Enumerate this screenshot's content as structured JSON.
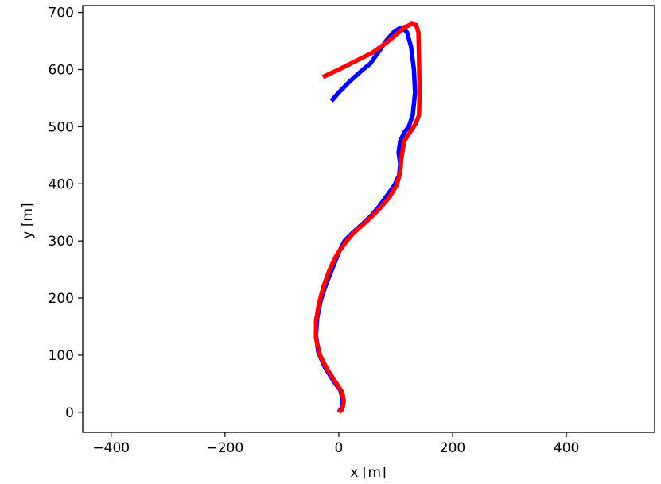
{
  "chart_data": {
    "type": "line",
    "title": "",
    "xlabel": "x [m]",
    "ylabel": "y [m]",
    "xlim": [
      -450,
      555
    ],
    "ylim": [
      -35,
      712
    ],
    "xticks": [
      -400,
      -200,
      0,
      200,
      400
    ],
    "yticks": [
      0,
      100,
      200,
      300,
      400,
      500,
      600,
      700
    ],
    "xtick_labels": [
      "−400",
      "−200",
      "0",
      "200",
      "400"
    ],
    "ytick_labels": [
      "0",
      "100",
      "200",
      "300",
      "400",
      "500",
      "600",
      "700"
    ],
    "grid": false,
    "legend": "none",
    "series": [
      {
        "color": "#0000ff",
        "x": [
          0,
          5,
          7,
          3,
          -10,
          -25,
          -36,
          -40,
          -38,
          -32,
          -22,
          -10,
          0,
          10,
          25,
          42,
          58,
          72,
          85,
          98,
          106,
          108,
          105,
          108,
          115,
          123,
          130,
          134,
          132,
          127,
          120,
          113,
          106,
          96,
          83,
          68,
          55,
          40,
          20,
          0,
          -13
        ],
        "y": [
          0,
          8,
          22,
          38,
          56,
          80,
          105,
          135,
          165,
          195,
          225,
          255,
          280,
          300,
          315,
          330,
          345,
          362,
          380,
          398,
          415,
          435,
          455,
          475,
          490,
          500,
          520,
          560,
          600,
          640,
          665,
          672,
          672,
          665,
          650,
          628,
          610,
          598,
          580,
          560,
          545
        ]
      },
      {
        "color": "#ff0000",
        "x": [
          0,
          6,
          9,
          6,
          -5,
          -20,
          -33,
          -40,
          -40,
          -35,
          -27,
          -16,
          -4,
          10,
          25,
          42,
          58,
          75,
          90,
          102,
          108,
          110,
          115,
          125,
          135,
          141,
          142,
          141,
          140,
          136,
          128,
          118,
          105,
          85,
          60,
          30,
          0,
          -28
        ],
        "y": [
          0,
          5,
          20,
          35,
          52,
          75,
          100,
          130,
          160,
          190,
          220,
          250,
          275,
          295,
          313,
          328,
          343,
          360,
          378,
          398,
          420,
          445,
          475,
          490,
          505,
          520,
          560,
          620,
          665,
          678,
          680,
          675,
          665,
          648,
          630,
          615,
          600,
          587
        ]
      }
    ]
  }
}
